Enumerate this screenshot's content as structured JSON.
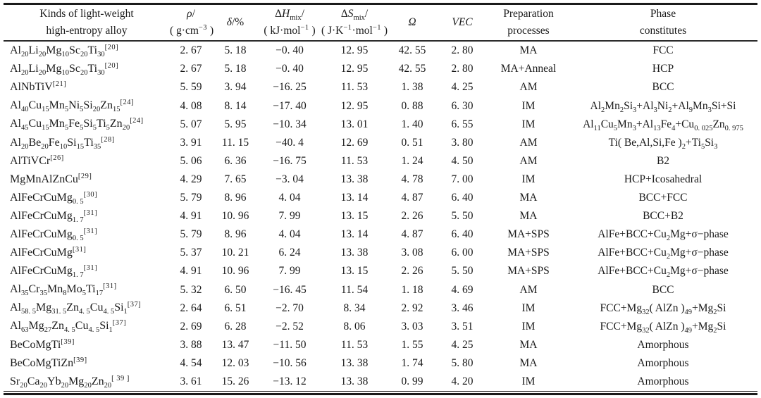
{
  "page": {
    "background": "#ffffff",
    "text_color": "#1a1a1a",
    "rule_color": "#1b1b1b"
  },
  "table": {
    "columns": [
      {
        "id": "alloy",
        "line1": "Kinds of light-weight",
        "line2": "high-entropy alloy"
      },
      {
        "id": "density",
        "line1": "*ρ*/",
        "line2": "( g·cm^−3^ )"
      },
      {
        "id": "delta",
        "line1": "*δ*/%",
        "line2": ""
      },
      {
        "id": "enthalpy",
        "line1": "Δ*H*~mix~/",
        "line2": "( kJ·mol^−1^ )"
      },
      {
        "id": "entropy",
        "line1": "Δ*S*~mix~/",
        "line2": "( J·K^−1^·mol^−1^ )"
      },
      {
        "id": "omega",
        "line1": "*Ω*",
        "line2": ""
      },
      {
        "id": "vec",
        "line1": "*VEC*",
        "line2": ""
      },
      {
        "id": "preparation",
        "line1": "Preparation",
        "line2": "processes"
      },
      {
        "id": "phase",
        "line1": "Phase",
        "line2": "constitutes"
      }
    ],
    "rows": [
      [
        "Al~20~Li~20~Mg~10~Sc~20~Ti~30~^[20]^",
        "2. 67",
        "5. 18",
        "−0. 40",
        "12. 95",
        "42. 55",
        "2. 80",
        "MA",
        "FCC"
      ],
      [
        "Al~20~Li~20~Mg~10~Sc~20~Ti~30~^[20]^",
        "2. 67",
        "5. 18",
        "−0. 40",
        "12. 95",
        "42. 55",
        "2. 80",
        "MA+Anneal",
        "HCP"
      ],
      [
        "AlNbTiV^[21]^",
        "5. 59",
        "3. 94",
        "−16. 25",
        "11. 53",
        "1. 38",
        "4. 25",
        "AM",
        "BCC"
      ],
      [
        "Al~40~Cu~15~Mn~5~Ni~5~Si~20~Zn~15~^[24]^",
        "4. 08",
        "8. 14",
        "−17. 40",
        "12. 95",
        "0. 88",
        "6. 30",
        "IM",
        "Al~2~Mn~2~Si~3~+Al~3~Ni~2~+Al~9~Mn~3~Si+Si"
      ],
      [
        "Al~45~Cu~15~Mn~5~Fe~5~Si~5~Ti~5~Zn~20~^[24]^",
        "5. 07",
        "5. 95",
        "−10. 34",
        "13. 01",
        "1. 40",
        "6. 55",
        "IM",
        "Al~11~Cu~5~Mn~3~+Al~13~Fe~4~+Cu~0. 025~Zn~0. 975~"
      ],
      [
        "Al~20~Be~20~Fe~10~Si~15~Ti~35~^[28]^",
        "3. 91",
        "11. 15",
        "−40. 4",
        "12. 69",
        "0. 51",
        "3. 80",
        "AM",
        "Ti( Be,Al,Si,Fe )~2~+Ti~5~Si~3~"
      ],
      [
        "AlTiVCr^[26]^",
        "5. 06",
        "6. 36",
        "−16. 75",
        "11. 53",
        "1. 24",
        "4. 50",
        "AM",
        "B2"
      ],
      [
        "MgMnAlZnCu^[29]^",
        "4. 29",
        "7. 65",
        "−3. 04",
        "13. 38",
        "4. 78",
        "7. 00",
        "IM",
        "HCP+Icosahedral"
      ],
      [
        "AlFeCrCuMg~0. 5~^[30]^",
        "5. 79",
        "8. 96",
        "4. 04",
        "13. 14",
        "4. 87",
        "6. 40",
        "MA",
        "BCC+FCC"
      ],
      [
        "AlFeCrCuMg~1. 7~^[31]^",
        "4. 91",
        "10. 96",
        "7. 99",
        "13. 15",
        "2. 26",
        "5. 50",
        "MA",
        "BCC+B2"
      ],
      [
        "AlFeCrCuMg~0. 5~^[31]^",
        "5. 79",
        "8. 96",
        "4. 04",
        "13. 14",
        "4. 87",
        "6. 40",
        "MA+SPS",
        "AlFe+BCC+Cu~2~Mg+σ−phase"
      ],
      [
        "AlFeCrCuMg^[31]^",
        "5. 37",
        "10. 21",
        "6. 24",
        "13. 38",
        "3. 08",
        "6. 00",
        "MA+SPS",
        "AlFe+BCC+Cu~2~Mg+σ−phase"
      ],
      [
        "AlFeCrCuMg~1. 7~^[31]^",
        "4. 91",
        "10. 96",
        "7. 99",
        "13. 15",
        "2. 26",
        "5. 50",
        "MA+SPS",
        "AlFe+BCC+Cu~2~Mg+σ−phase"
      ],
      [
        "Al~35~Cr~35~Mn~8~Mo~5~Ti~17~^[31]^",
        "5. 32",
        "6. 50",
        "−16. 45",
        "11. 54",
        "1. 18",
        "4. 69",
        "AM",
        "BCC"
      ],
      [
        "Al~58. 5~Mg~31. 5~Zn~4. 5~Cu~4. 5~Si~1~^[37]^",
        "2. 64",
        "6. 51",
        "−2. 70",
        "8. 34",
        "2. 92",
        "3. 46",
        "IM",
        "FCC+Mg~32~( AlZn )~49~+Mg~2~Si"
      ],
      [
        "Al~63~Mg~27~Zn~4. 5~Cu~4. 5~Si~1~^[37]^",
        "2. 69",
        "6. 28",
        "−2. 52",
        "8. 06",
        "3. 03",
        "3. 51",
        "IM",
        "FCC+Mg~32~( AlZn )~49~+Mg~2~Si"
      ],
      [
        "BeCoMgTi^[39]^",
        "3. 88",
        "13. 47",
        "−11. 50",
        "11. 53",
        "1. 55",
        "4. 25",
        "MA",
        "Amorphous"
      ],
      [
        "BeCoMgTiZn^[39]^",
        "4. 54",
        "12. 03",
        "−10. 56",
        "13. 38",
        "1. 74",
        "5. 80",
        "MA",
        "Amorphous"
      ],
      [
        "Sr~20~Ca~20~Yb~20~Mg~20~Zn~20~^[ 39 ]^",
        "3. 61",
        "15. 26",
        "−13. 12",
        "13. 38",
        "0. 99",
        "4. 20",
        "IM",
        "Amorphous"
      ]
    ]
  }
}
